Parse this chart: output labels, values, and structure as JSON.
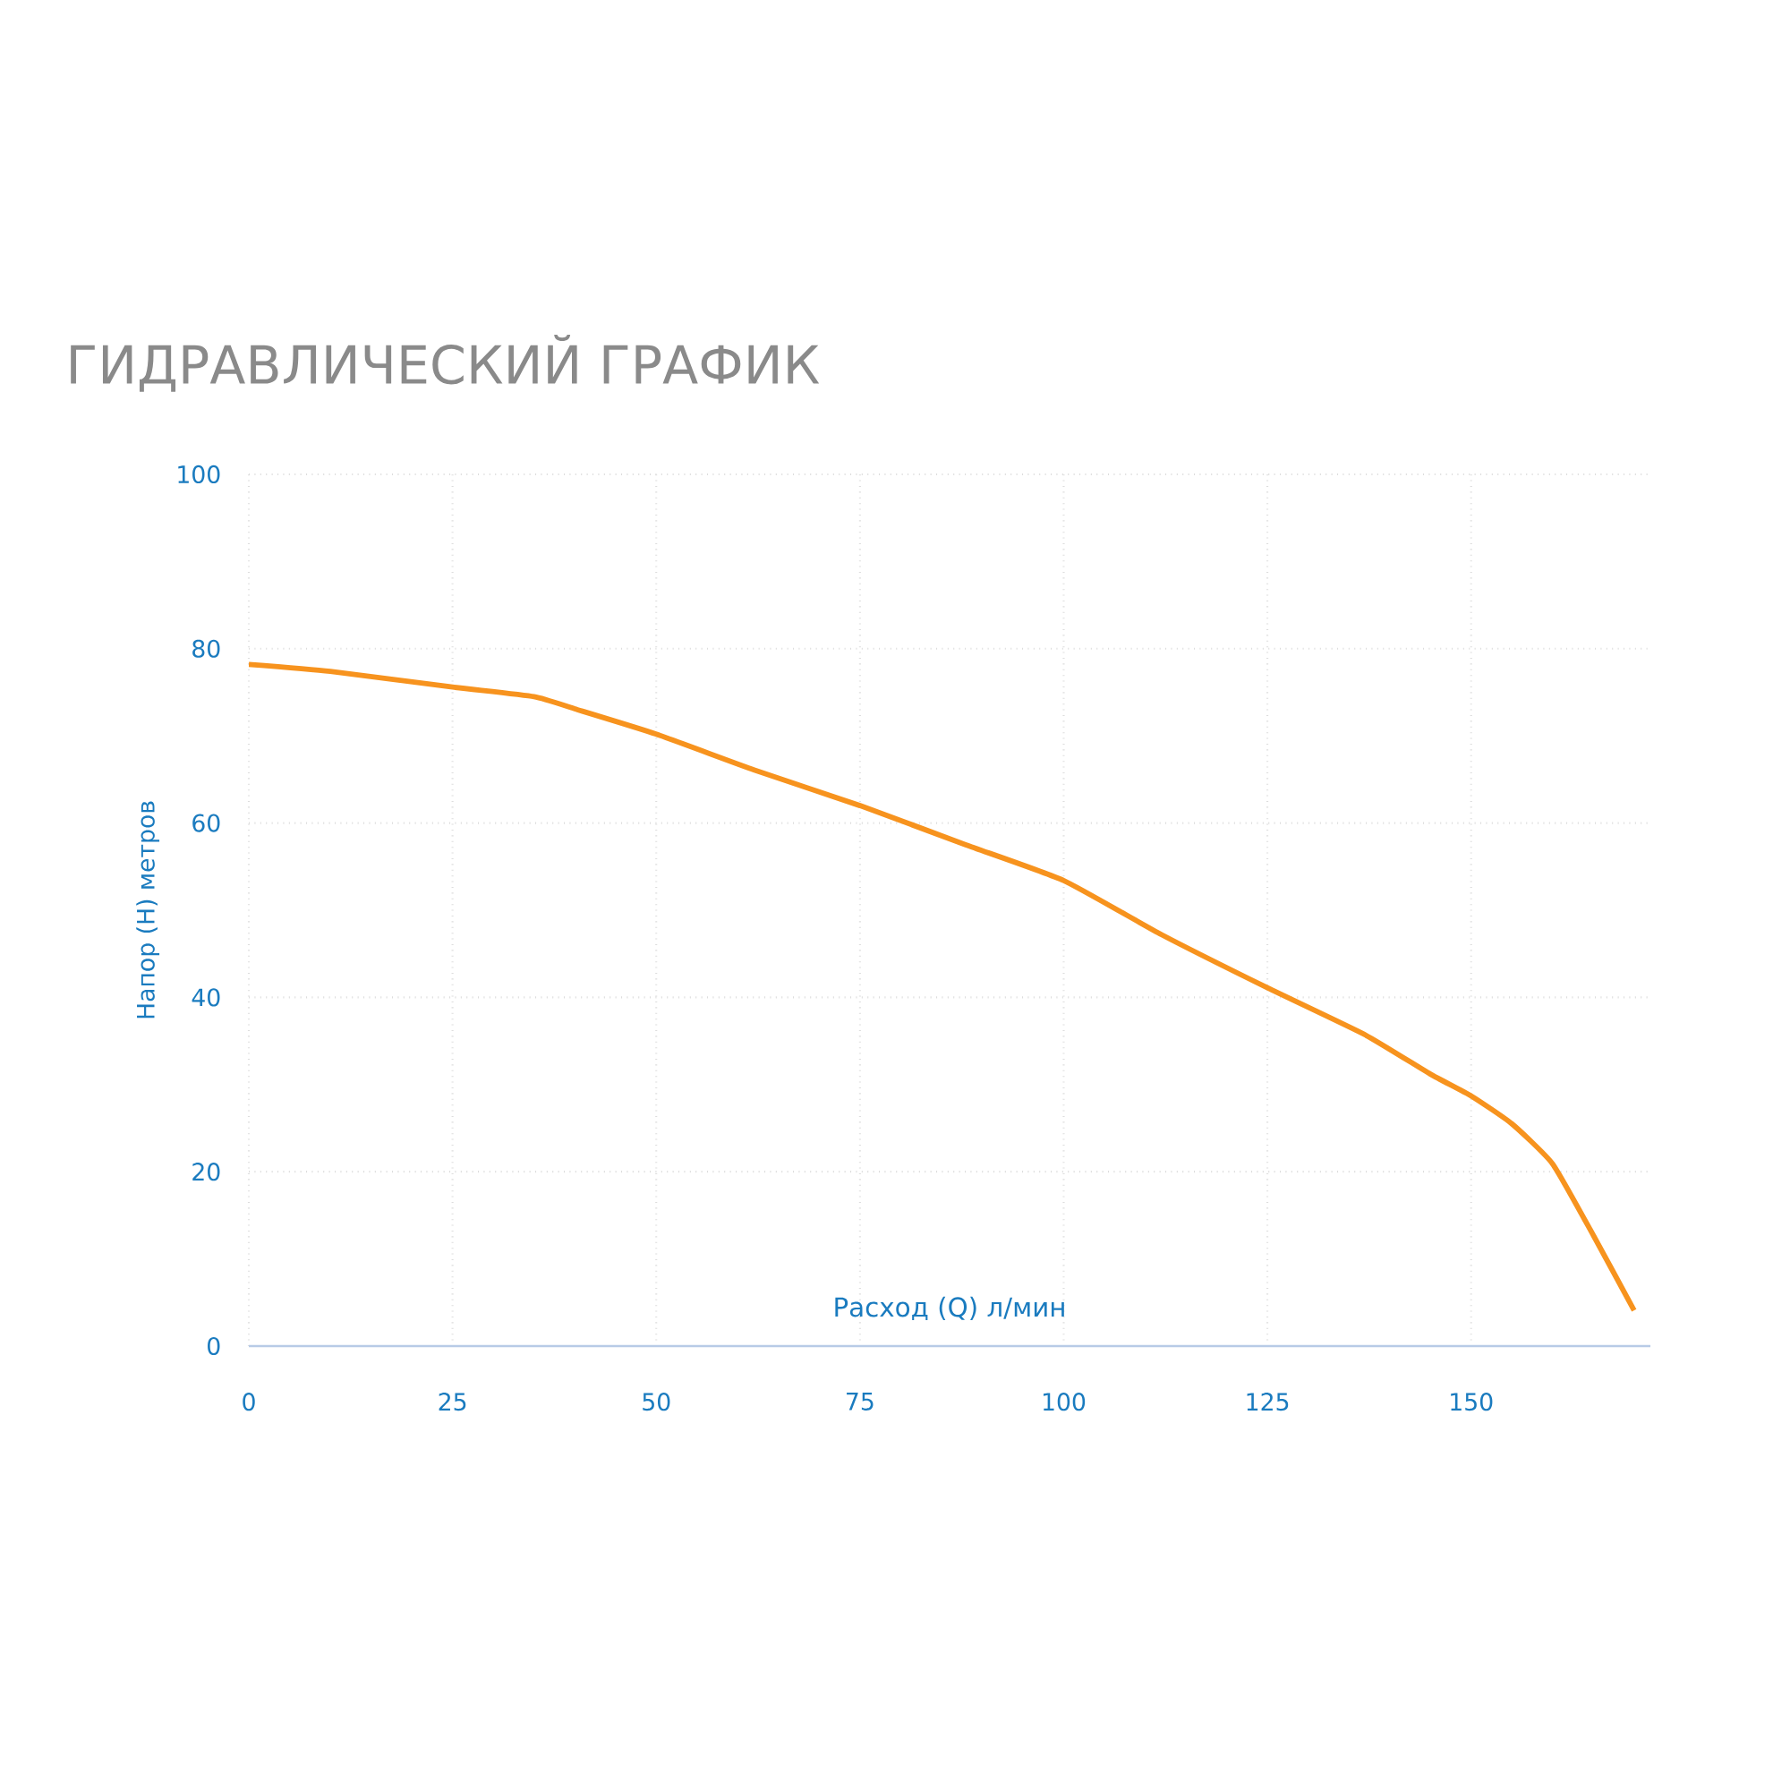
{
  "chart_data": {
    "type": "line",
    "title": "ГИДРАВЛИЧЕСКИЙ ГРАФИК",
    "xlabel": "Расход (Q) л/мин",
    "ylabel": "Напор (H) метров",
    "x": [
      0,
      10,
      25,
      35,
      40,
      50,
      62,
      75,
      88,
      100,
      112,
      125,
      137,
      145,
      150,
      155,
      160,
      165,
      170
    ],
    "series": [
      {
        "color": "#f7931e",
        "values": [
          78.2,
          77.4,
          75.6,
          74.5,
          73.1,
          70.2,
          66.1,
          62.0,
          57.5,
          53.4,
          47.2,
          41.1,
          35.7,
          31.2,
          28.7,
          25.5,
          20.9,
          12.7,
          4.1
        ]
      }
    ],
    "xlim": [
      0,
      172
    ],
    "xticks": [
      0,
      25,
      50,
      75,
      100,
      125,
      150
    ],
    "ylim": [
      0,
      100
    ],
    "yticks": [
      0,
      20,
      40,
      60,
      80,
      100
    ],
    "grid": true,
    "marker": "none",
    "line_style": "solid"
  }
}
